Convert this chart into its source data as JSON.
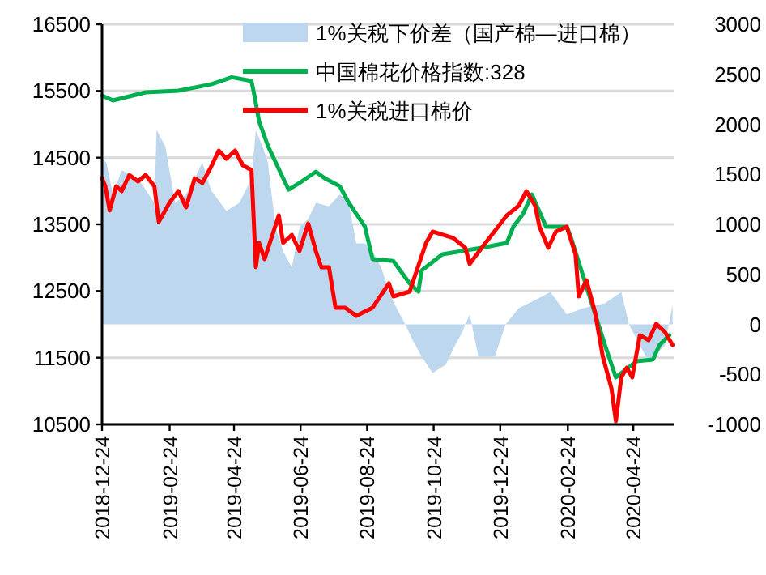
{
  "chart_data": {
    "type": "line",
    "xlim": [
      "2018-12-24",
      "2020-05-31"
    ],
    "xticks": [
      "2018-12-24",
      "2019-02-24",
      "2019-04-24",
      "2019-06-24",
      "2019-08-24",
      "2019-10-24",
      "2019-12-24",
      "2020-02-24",
      "2020-04-24"
    ],
    "ylim": [
      10500,
      16500
    ],
    "yticks": [
      10500,
      11500,
      12500,
      13500,
      14500,
      15500,
      16500
    ],
    "y2lim": [
      -1000,
      3000
    ],
    "y2ticks": [
      -1000,
      -500,
      0,
      500,
      1000,
      1500,
      2000,
      2500,
      3000
    ],
    "grid": "y",
    "legend": "top right",
    "series": [
      {
        "name": "1%关税下价差（国产棉—进口棉）",
        "type": "area",
        "axis": "y2",
        "color": "#bdd7ee",
        "x": [
          "2018-12-24",
          "2018-12-28",
          "2019-01-03",
          "2019-01-11",
          "2019-01-26",
          "2019-02-10",
          "2019-02-12",
          "2019-02-20",
          "2019-03-01",
          "2019-03-11",
          "2019-03-19",
          "2019-03-26",
          "2019-04-03",
          "2019-04-17",
          "2019-04-29",
          "2019-05-10",
          "2019-05-14",
          "2019-05-20",
          "2019-05-25",
          "2019-06-01",
          "2019-06-08",
          "2019-06-16",
          "2019-06-23",
          "2019-07-01",
          "2019-07-08",
          "2019-07-20",
          "2019-07-30",
          "2019-08-07",
          "2019-08-14",
          "2019-08-22",
          "2019-08-29",
          "2019-09-06",
          "2019-09-13",
          "2019-09-20",
          "2019-09-28",
          "2019-10-05",
          "2019-10-13",
          "2019-10-23",
          "2019-11-04",
          "2019-11-11",
          "2019-11-19",
          "2019-11-26",
          "2019-12-04",
          "2019-12-19",
          "2019-12-29",
          "2020-01-10",
          "2020-01-25",
          "2020-02-08",
          "2020-02-23",
          "2020-03-09",
          "2020-03-29",
          "2020-04-13",
          "2020-04-20",
          "2020-04-30",
          "2020-05-08",
          "2020-05-15",
          "2020-05-23",
          "2020-05-30"
        ],
        "values": [
          1650,
          1620,
          1300,
          1540,
          1460,
          1215,
          1944,
          1780,
          1215,
          1300,
          1460,
          1620,
          1340,
          1134,
          1215,
          1460,
          1944,
          1780,
          1620,
          972,
          730,
          567,
          972,
          1053,
          1215,
          1180,
          1300,
          1215,
          810,
          810,
          730,
          567,
          324,
          162,
          0,
          -162,
          -324,
          -486,
          -405,
          -243,
          -81,
          100,
          -324,
          -324,
          0,
          162,
          243,
          324,
          100,
          162,
          210,
          324,
          0,
          -210,
          -370,
          -300,
          -210,
          200
        ]
      },
      {
        "name": "中国棉花价格指数:328",
        "color": "#00b050",
        "x": [
          "2018-12-24",
          "2019-01-03",
          "2019-01-15",
          "2019-02-02",
          "2019-03-04",
          "2019-04-03",
          "2019-04-22",
          "2019-05-10",
          "2019-05-13",
          "2019-05-17",
          "2019-05-25",
          "2019-06-08",
          "2019-06-13",
          "2019-06-23",
          "2019-07-08",
          "2019-07-16",
          "2019-07-30",
          "2019-08-07",
          "2019-08-22",
          "2019-08-29",
          "2019-09-17",
          "2019-10-02",
          "2019-10-10",
          "2019-10-13",
          "2019-11-01",
          "2019-12-07",
          "2019-12-30",
          "2020-01-05",
          "2020-01-14",
          "2020-01-22",
          "2020-02-04",
          "2020-02-23",
          "2020-02-27",
          "2020-03-29",
          "2020-04-08",
          "2020-04-27",
          "2020-05-12",
          "2020-05-18",
          "2020-05-27"
        ],
        "values": [
          15431,
          15358,
          15407,
          15480,
          15504,
          15601,
          15706,
          15650,
          15407,
          15043,
          14678,
          14192,
          14022,
          14120,
          14290,
          14192,
          14071,
          13828,
          13464,
          12978,
          12951,
          12614,
          12492,
          12808,
          13051,
          13148,
          13221,
          13464,
          13658,
          13949,
          13464,
          13464,
          13294,
          11690,
          11205,
          11448,
          11472,
          11690,
          11836
        ]
      },
      {
        "name": "1%关税进口棉价",
        "color": "#ff0000",
        "x": [
          "2018-12-24",
          "2018-12-27",
          "2018-12-31",
          "2019-01-06",
          "2019-01-11",
          "2019-01-18",
          "2019-01-26",
          "2019-02-02",
          "2019-02-10",
          "2019-02-14",
          "2019-02-24",
          "2019-03-04",
          "2019-03-11",
          "2019-03-19",
          "2019-03-26",
          "2019-04-03",
          "2019-04-10",
          "2019-04-17",
          "2019-04-25",
          "2019-05-02",
          "2019-05-10",
          "2019-05-14",
          "2019-05-17",
          "2019-05-22",
          "2019-06-04",
          "2019-06-08",
          "2019-06-16",
          "2019-06-23",
          "2019-07-01",
          "2019-07-08",
          "2019-07-13",
          "2019-07-20",
          "2019-07-26",
          "2019-08-04",
          "2019-08-14",
          "2019-08-29",
          "2019-09-13",
          "2019-09-17",
          "2019-10-02",
          "2019-10-17",
          "2019-10-23",
          "2019-11-11",
          "2019-11-22",
          "2019-11-26",
          "2019-12-07",
          "2019-12-22",
          "2019-12-30",
          "2020-01-10",
          "2020-01-17",
          "2020-01-25",
          "2020-01-29",
          "2020-02-06",
          "2020-02-13",
          "2020-02-23",
          "2020-03-02",
          "2020-03-05",
          "2020-03-12",
          "2020-03-20",
          "2020-03-27",
          "2020-04-04",
          "2020-04-08",
          "2020-04-13",
          "2020-04-18",
          "2020-04-23",
          "2020-04-30",
          "2020-05-08",
          "2020-05-15",
          "2020-05-23",
          "2020-05-30"
        ],
        "values": [
          14192,
          14071,
          13707,
          14071,
          13998,
          14241,
          14144,
          14241,
          14071,
          13536,
          13828,
          13998,
          13755,
          14192,
          14120,
          14362,
          14605,
          14484,
          14605,
          14387,
          14314,
          12857,
          13221,
          12978,
          13634,
          13221,
          13342,
          13099,
          13512,
          13099,
          12857,
          12857,
          12250,
          12250,
          12128,
          12250,
          12614,
          12419,
          12492,
          13221,
          13391,
          13294,
          13148,
          12905,
          13148,
          13464,
          13634,
          13779,
          13998,
          13779,
          13464,
          13148,
          13391,
          13464,
          13051,
          12419,
          12662,
          12176,
          11520,
          11035,
          10549,
          11205,
          11350,
          11205,
          11836,
          11763,
          12007,
          11885,
          11690
        ]
      }
    ]
  }
}
